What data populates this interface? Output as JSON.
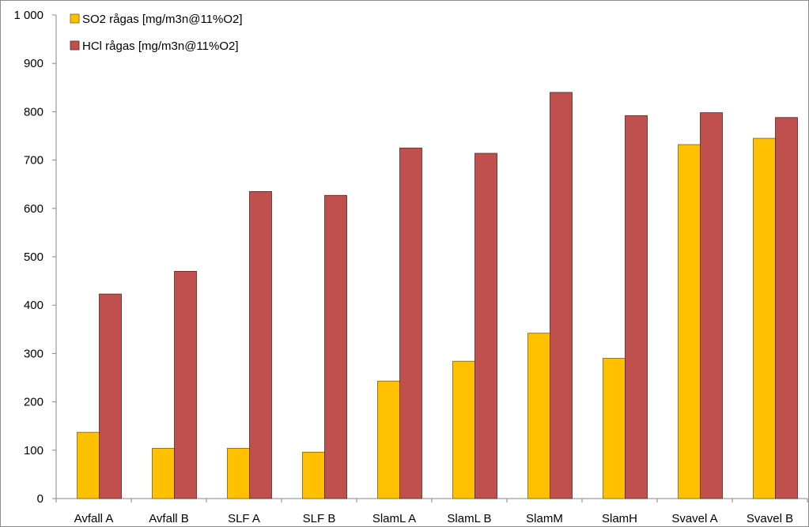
{
  "chart_data": {
    "type": "bar",
    "categories": [
      "Avfall A",
      "Avfall B",
      "SLF A",
      "SLF B",
      "SlamL A",
      "SlamL B",
      "SlamM",
      "SlamH",
      "Svavel A",
      "Svavel B"
    ],
    "series": [
      {
        "name": "SO2 rågas [mg/m3n@11%O2]",
        "color": "#FFC000",
        "values": [
          137,
          104,
          104,
          96,
          243,
          284,
          342,
          290,
          732,
          745
        ]
      },
      {
        "name": "HCl rågas [mg/m3n@11%O2]",
        "color": "#C0504D",
        "values": [
          423,
          470,
          635,
          627,
          725,
          714,
          840,
          792,
          798,
          788
        ]
      }
    ],
    "ylim": [
      0,
      1000
    ],
    "yticks": [
      0,
      100,
      200,
      300,
      400,
      500,
      600,
      700,
      800,
      900,
      1000
    ],
    "ytick_labels": [
      "0",
      "100",
      "200",
      "300",
      "400",
      "500",
      "600",
      "700",
      "800",
      "900",
      "1 000"
    ],
    "xlabel": "",
    "ylabel": "",
    "grid": false,
    "legend_position": "top-left"
  }
}
